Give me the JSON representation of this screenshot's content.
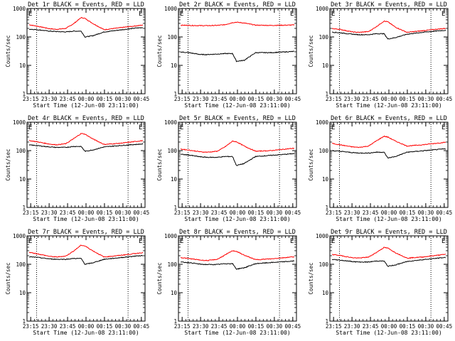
{
  "figure": {
    "background": "#ffffff",
    "axis_color": "#000000",
    "events_color": "#000000",
    "lld_color": "#ff0000"
  },
  "chart_data": [
    {
      "type": "line",
      "title": "Det 1r BLACK = Events, RED = LLD",
      "xlabel": "Start Time (12-Jun-08 23:11:00)",
      "ylabel": "Counts/sec",
      "y_scale": "log",
      "ylim": [
        1,
        1000
      ],
      "y_ticks": [
        1,
        10,
        100,
        1000
      ],
      "x_ticks": [
        "23:15",
        "23:30",
        "23:45",
        "00:00",
        "00:15",
        "00:30",
        "00:45"
      ],
      "x": [
        -0.48,
        -0.38,
        -0.25,
        -0.18,
        -0.08,
        0.0,
        0.08,
        0.12,
        0.2,
        0.32,
        0.48,
        0.65,
        0.82,
        1.0,
        1.1
      ],
      "events": [
        190,
        180,
        160,
        155,
        150,
        160,
        160,
        100,
        110,
        150,
        175,
        205,
        225,
        200,
        190
      ],
      "lld": [
        275,
        240,
        195,
        185,
        200,
        290,
        480,
        450,
        300,
        180,
        210,
        245,
        285,
        290,
        280
      ],
      "dotted_lines_x": [
        -0.37,
        0.87
      ],
      "marker_E": true
    },
    {
      "type": "line",
      "title": "Det 2r BLACK = Events, RED = LLD",
      "xlabel": "Start Time (12-Jun-08 23:11:00)",
      "ylabel": "Counts/sec",
      "y_scale": "log",
      "ylim": [
        1,
        1000
      ],
      "y_ticks": [
        1,
        10,
        100,
        1000
      ],
      "x_ticks": [
        "23:15",
        "23:30",
        "23:45",
        "00:00",
        "00:15",
        "00:30",
        "00:45"
      ],
      "x": [
        -0.48,
        -0.38,
        -0.25,
        -0.18,
        -0.08,
        0.0,
        0.08,
        0.12,
        0.2,
        0.32,
        0.48,
        0.65,
        0.82,
        1.0,
        1.1
      ],
      "events": [
        30,
        28,
        24,
        24,
        25,
        26,
        26,
        14,
        15,
        28,
        28,
        30,
        32,
        30,
        30
      ],
      "lld": [
        260,
        255,
        250,
        250,
        255,
        270,
        320,
        330,
        310,
        260,
        255,
        260,
        270,
        275,
        270
      ],
      "dotted_lines_x": [
        -0.37,
        0.87
      ],
      "marker_E": true
    },
    {
      "type": "line",
      "title": "Det 3r BLACK = Events, RED = LLD",
      "xlabel": "Start Time (12-Jun-08 23:11:00)",
      "ylabel": "Counts/sec",
      "y_scale": "log",
      "ylim": [
        1,
        1000
      ],
      "y_ticks": [
        1,
        10,
        100,
        1000
      ],
      "x_ticks": [
        "23:15",
        "23:30",
        "23:45",
        "00:00",
        "00:15",
        "00:30",
        "00:45"
      ],
      "x": [
        -0.48,
        -0.38,
        -0.25,
        -0.18,
        -0.08,
        0.0,
        0.08,
        0.12,
        0.2,
        0.32,
        0.48,
        0.65,
        0.82,
        1.0,
        1.1
      ],
      "events": [
        150,
        140,
        125,
        120,
        120,
        130,
        130,
        85,
        95,
        125,
        145,
        165,
        180,
        165,
        160
      ],
      "lld": [
        200,
        185,
        150,
        145,
        155,
        230,
        360,
        340,
        220,
        145,
        165,
        190,
        215,
        220,
        215
      ],
      "dotted_lines_x": [
        -0.37,
        0.87
      ],
      "marker_E": true
    },
    {
      "type": "line",
      "title": "Det 4r BLACK = Events, RED = LLD",
      "xlabel": "Start Time (12-Jun-08 23:11:00)",
      "ylabel": "Counts/sec",
      "y_scale": "log",
      "ylim": [
        1,
        1000
      ],
      "y_ticks": [
        1,
        10,
        100,
        1000
      ],
      "x_ticks": [
        "23:15",
        "23:30",
        "23:45",
        "00:00",
        "00:15",
        "00:30",
        "00:45"
      ],
      "x": [
        -0.48,
        -0.38,
        -0.25,
        -0.18,
        -0.08,
        0.0,
        0.08,
        0.12,
        0.2,
        0.32,
        0.48,
        0.65,
        0.82,
        1.0,
        1.1
      ],
      "events": [
        160,
        150,
        135,
        130,
        130,
        140,
        140,
        95,
        105,
        135,
        150,
        165,
        180,
        170,
        165
      ],
      "lld": [
        230,
        205,
        170,
        160,
        175,
        260,
        400,
        380,
        260,
        165,
        180,
        210,
        245,
        250,
        245
      ],
      "dotted_lines_x": [
        -0.37,
        0.87
      ],
      "marker_E": true
    },
    {
      "type": "line",
      "title": "Det 5r BLACK = Events, RED = LLD",
      "xlabel": "Start Time (12-Jun-08 23:11:00)",
      "ylabel": "Counts/sec",
      "y_scale": "log",
      "ylim": [
        1,
        1000
      ],
      "y_ticks": [
        1,
        10,
        100,
        1000
      ],
      "x_ticks": [
        "23:15",
        "23:30",
        "23:45",
        "00:00",
        "00:15",
        "00:30",
        "00:45"
      ],
      "x": [
        -0.48,
        -0.38,
        -0.25,
        -0.18,
        -0.08,
        0.0,
        0.08,
        0.12,
        0.2,
        0.32,
        0.48,
        0.65,
        0.82,
        1.0,
        1.1
      ],
      "events": [
        75,
        70,
        60,
        58,
        58,
        62,
        62,
        30,
        35,
        62,
        68,
        75,
        85,
        80,
        78
      ],
      "lld": [
        115,
        105,
        90,
        88,
        95,
        135,
        215,
        205,
        145,
        95,
        100,
        115,
        130,
        130,
        125
      ],
      "dotted_lines_x": [
        -0.37,
        0.87
      ],
      "marker_E": true
    },
    {
      "type": "line",
      "title": "Det 6r BLACK = Events, RED = LLD",
      "xlabel": "Start Time (12-Jun-08 23:11:00)",
      "ylabel": "Counts/sec",
      "y_scale": "log",
      "ylim": [
        1,
        1000
      ],
      "y_ticks": [
        1,
        10,
        100,
        1000
      ],
      "x_ticks": [
        "23:15",
        "23:30",
        "23:45",
        "00:00",
        "00:15",
        "00:30",
        "00:45"
      ],
      "x": [
        -0.48,
        -0.38,
        -0.25,
        -0.18,
        -0.08,
        0.0,
        0.08,
        0.12,
        0.2,
        0.32,
        0.48,
        0.65,
        0.82,
        1.0,
        1.1
      ],
      "events": [
        100,
        95,
        85,
        82,
        82,
        88,
        88,
        55,
        62,
        88,
        98,
        110,
        125,
        118,
        112
      ],
      "lld": [
        185,
        160,
        135,
        130,
        145,
        220,
        320,
        300,
        215,
        145,
        160,
        185,
        215,
        215,
        205
      ],
      "dotted_lines_x": [
        -0.37,
        0.87
      ],
      "marker_E": true
    },
    {
      "type": "line",
      "title": "Det 7r BLACK = Events, RED = LLD",
      "xlabel": "Start Time (12-Jun-08 23:11:00)",
      "ylabel": "Counts/sec",
      "y_scale": "log",
      "ylim": [
        1,
        1000
      ],
      "y_ticks": [
        1,
        10,
        100,
        1000
      ],
      "x_ticks": [
        "23:15",
        "23:30",
        "23:45",
        "00:00",
        "00:15",
        "00:30",
        "00:45"
      ],
      "x": [
        -0.48,
        -0.38,
        -0.25,
        -0.18,
        -0.08,
        0.0,
        0.08,
        0.12,
        0.2,
        0.32,
        0.48,
        0.65,
        0.82,
        1.0,
        1.1
      ],
      "events": [
        185,
        175,
        155,
        150,
        150,
        160,
        160,
        100,
        112,
        150,
        170,
        195,
        215,
        200,
        190
      ],
      "lld": [
        270,
        235,
        190,
        180,
        195,
        290,
        470,
        440,
        300,
        180,
        205,
        240,
        285,
        290,
        280
      ],
      "dotted_lines_x": [
        -0.37,
        0.87
      ],
      "marker_E": true
    },
    {
      "type": "line",
      "title": "Det 8r BLACK = Events, RED = LLD",
      "xlabel": "Start Time (12-Jun-08 23:11:00)",
      "ylabel": "Counts/sec",
      "y_scale": "log",
      "ylim": [
        1,
        1000
      ],
      "y_ticks": [
        1,
        10,
        100,
        1000
      ],
      "x_ticks": [
        "23:15",
        "23:30",
        "23:45",
        "00:00",
        "00:15",
        "00:30",
        "00:45"
      ],
      "x": [
        -0.48,
        -0.38,
        -0.25,
        -0.18,
        -0.08,
        0.0,
        0.08,
        0.12,
        0.2,
        0.32,
        0.48,
        0.65,
        0.82,
        1.0,
        1.1
      ],
      "events": [
        120,
        115,
        100,
        98,
        98,
        105,
        105,
        68,
        75,
        105,
        115,
        125,
        140,
        132,
        128
      ],
      "lld": [
        175,
        160,
        140,
        135,
        150,
        210,
        300,
        285,
        210,
        145,
        155,
        175,
        200,
        200,
        195
      ],
      "dotted_lines_x": [
        -0.37,
        0.87
      ],
      "marker_E": true
    },
    {
      "type": "line",
      "title": "Det 9r BLACK = Events, RED = LLD",
      "xlabel": "Start Time (12-Jun-08 23:11:00)",
      "ylabel": "Counts/sec",
      "y_scale": "log",
      "ylim": [
        1,
        1000
      ],
      "y_ticks": [
        1,
        10,
        100,
        1000
      ],
      "x_ticks": [
        "23:15",
        "23:30",
        "23:45",
        "00:00",
        "00:15",
        "00:30",
        "00:45"
      ],
      "x": [
        -0.48,
        -0.38,
        -0.25,
        -0.18,
        -0.08,
        0.0,
        0.08,
        0.12,
        0.2,
        0.32,
        0.48,
        0.65,
        0.82,
        1.0,
        1.1
      ],
      "events": [
        150,
        140,
        125,
        120,
        120,
        130,
        130,
        85,
        95,
        125,
        145,
        165,
        185,
        170,
        165
      ],
      "lld": [
        225,
        205,
        170,
        165,
        180,
        260,
        390,
        370,
        255,
        165,
        180,
        210,
        245,
        245,
        240
      ],
      "dotted_lines_x": [
        -0.37,
        0.87
      ],
      "marker_E": true
    }
  ]
}
